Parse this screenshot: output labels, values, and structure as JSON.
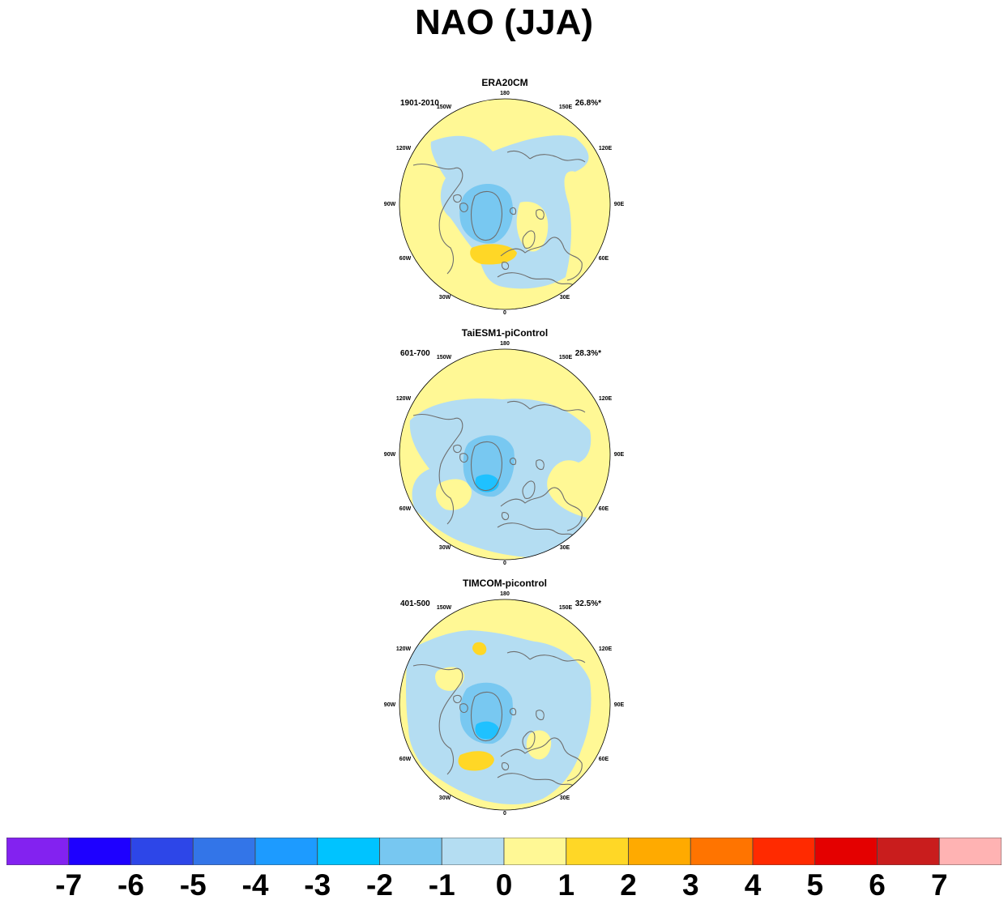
{
  "figure": {
    "title": "NAO (JJA)"
  },
  "colors": {
    "land_line": "#6e6e6e",
    "ocean_bg": "#fff895",
    "neg1": "#b4ddf2",
    "neg2": "#78c8f1",
    "neg3": "#1fc1ff",
    "pos1": "#fff895",
    "pos2": "#ffd726"
  },
  "colorbar": {
    "colors": [
      "#8322f0",
      "#1e00ff",
      "#2d46e8",
      "#3375e8",
      "#1d9bff",
      "#00c3ff",
      "#77c7f1",
      "#b4ddf2",
      "#fff895",
      "#ffd726",
      "#ffaa00",
      "#ff7400",
      "#ff2a00",
      "#e40000",
      "#c91d1d",
      "#ffb3b3"
    ],
    "labels": [
      "-7",
      "-6",
      "-5",
      "-4",
      "-3",
      "-2",
      "-1",
      "0",
      "1",
      "2",
      "3",
      "4",
      "5",
      "6",
      "7"
    ]
  },
  "lon_labels": {
    "top": "180",
    "bottom": "0",
    "upper_left": "150W",
    "upper_right": "150E",
    "mid_upper_left": "120W",
    "mid_upper_right": "120E",
    "left": "90W",
    "right": "90E",
    "mid_lower_left": "60W",
    "mid_lower_right": "60E",
    "lower_left": "30W",
    "lower_right": "30E"
  },
  "chart_data": [
    {
      "type": "heatmap",
      "projection": "north-polar-stereographic",
      "title": "ERA20CM",
      "period": "1901-2010",
      "variance_explained": "26.8%*",
      "pattern": "era"
    },
    {
      "type": "heatmap",
      "projection": "north-polar-stereographic",
      "title": "TaiESM1-piControl",
      "period": "601-700",
      "variance_explained": "28.3%*",
      "pattern": "tai"
    },
    {
      "type": "heatmap",
      "projection": "north-polar-stereographic",
      "title": "TIMCOM-picontrol",
      "period": "401-500",
      "variance_explained": "32.5%*",
      "pattern": "tim"
    }
  ]
}
